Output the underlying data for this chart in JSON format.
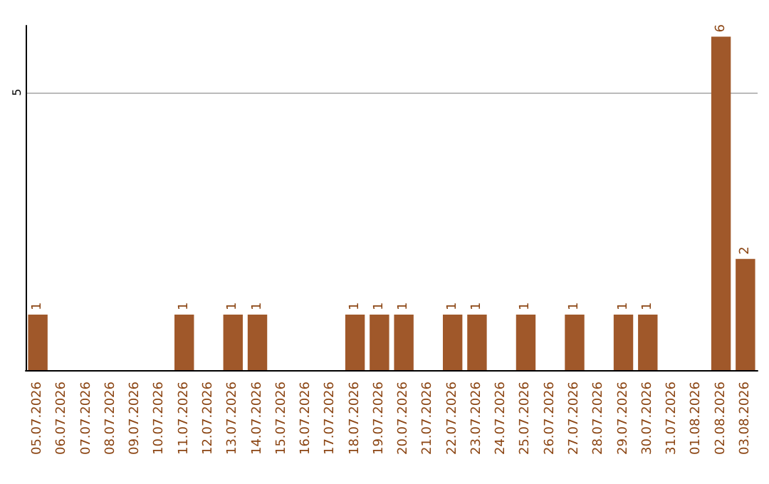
{
  "chart_data": {
    "type": "bar",
    "categories": [
      "05.07.2026",
      "06.07.2026",
      "07.07.2026",
      "08.07.2026",
      "09.07.2026",
      "10.07.2026",
      "11.07.2026",
      "12.07.2026",
      "13.07.2026",
      "14.07.2026",
      "15.07.2026",
      "16.07.2026",
      "17.07.2026",
      "18.07.2026",
      "19.07.2026",
      "20.07.2026",
      "21.07.2026",
      "22.07.2026",
      "23.07.2026",
      "24.07.2026",
      "25.07.2026",
      "26.07.2026",
      "27.07.2026",
      "28.07.2026",
      "29.07.2026",
      "30.07.2026",
      "31.07.2026",
      "01.08.2026",
      "02.08.2026",
      "03.08.2026"
    ],
    "values": [
      1,
      0,
      0,
      0,
      0,
      0,
      1,
      0,
      1,
      1,
      0,
      0,
      0,
      1,
      1,
      1,
      0,
      1,
      1,
      0,
      1,
      0,
      1,
      0,
      1,
      1,
      0,
      0,
      6,
      2
    ],
    "value_labels": [
      "1",
      null,
      null,
      null,
      null,
      null,
      "1",
      null,
      "1",
      "1",
      null,
      null,
      null,
      "1",
      "1",
      "1",
      null,
      "1",
      "1",
      null,
      "1",
      null,
      "1",
      null,
      "1",
      "1",
      null,
      null,
      "6",
      "2"
    ],
    "color": "#a0582a",
    "ylim": [
      0,
      6.2
    ],
    "yticks": [
      5
    ],
    "grid": "y"
  }
}
